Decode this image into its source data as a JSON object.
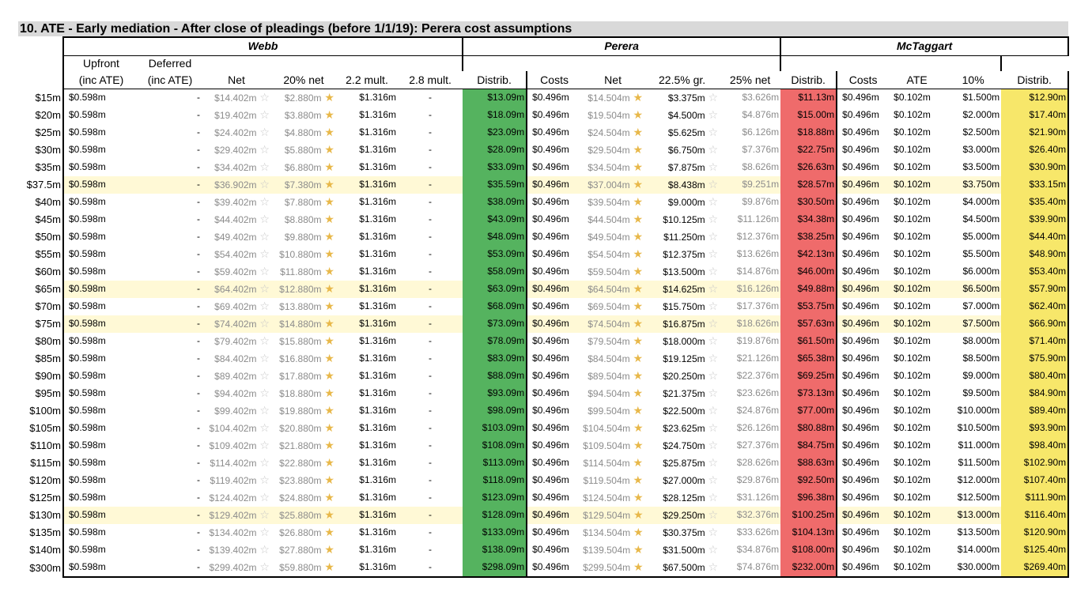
{
  "title": "10.  ATE - Early mediation - After close of pleadings (before 1/1/19): Perera cost assumptions",
  "groups": [
    "Webb",
    "Perera",
    "McTaggart"
  ],
  "header_row1": {
    "upfront": "Upfront",
    "deferred": "Deferred"
  },
  "columns": [
    "(inc ATE)",
    "(inc ATE)",
    "Net",
    "20% net",
    "2.2 mult.",
    "2.8 mult.",
    "Distrib.",
    "Costs",
    "Net",
    "22.5% gr.",
    "25% net",
    "Distrib.",
    "Costs",
    "ATE",
    "10%",
    "Distrib."
  ],
  "colors": {
    "webb_distrib": "#55b35f",
    "perera_distrib": "#ef6b6b",
    "mctaggart_distrib": "#f7e76a",
    "highlight_row": "#fff9d6",
    "title_bar": "#d9d9d9"
  },
  "rows": [
    {
      "label": "$15m",
      "hl": false,
      "c": [
        "$0.598m",
        "-",
        "$14.402m",
        "$2.880m",
        "$1.316m",
        "-",
        "$13.09m",
        "$0.496m",
        "$14.504m",
        "$3.375m",
        "$3.626m",
        "$11.13m",
        "$0.496m",
        "$0.102m",
        "$1.500m",
        "$12.90m"
      ]
    },
    {
      "label": "$20m",
      "hl": false,
      "c": [
        "$0.598m",
        "-",
        "$19.402m",
        "$3.880m",
        "$1.316m",
        "-",
        "$18.09m",
        "$0.496m",
        "$19.504m",
        "$4.500m",
        "$4.876m",
        "$15.00m",
        "$0.496m",
        "$0.102m",
        "$2.000m",
        "$17.40m"
      ]
    },
    {
      "label": "$25m",
      "hl": false,
      "c": [
        "$0.598m",
        "-",
        "$24.402m",
        "$4.880m",
        "$1.316m",
        "-",
        "$23.09m",
        "$0.496m",
        "$24.504m",
        "$5.625m",
        "$6.126m",
        "$18.88m",
        "$0.496m",
        "$0.102m",
        "$2.500m",
        "$21.90m"
      ]
    },
    {
      "label": "$30m",
      "hl": false,
      "c": [
        "$0.598m",
        "-",
        "$29.402m",
        "$5.880m",
        "$1.316m",
        "-",
        "$28.09m",
        "$0.496m",
        "$29.504m",
        "$6.750m",
        "$7.376m",
        "$22.75m",
        "$0.496m",
        "$0.102m",
        "$3.000m",
        "$26.40m"
      ]
    },
    {
      "label": "$35m",
      "hl": false,
      "c": [
        "$0.598m",
        "-",
        "$34.402m",
        "$6.880m",
        "$1.316m",
        "-",
        "$33.09m",
        "$0.496m",
        "$34.504m",
        "$7.875m",
        "$8.626m",
        "$26.63m",
        "$0.496m",
        "$0.102m",
        "$3.500m",
        "$30.90m"
      ]
    },
    {
      "label": "$37.5m",
      "hl": true,
      "c": [
        "$0.598m",
        "-",
        "$36.902m",
        "$7.380m",
        "$1.316m",
        "-",
        "$35.59m",
        "$0.496m",
        "$37.004m",
        "$8.438m",
        "$9.251m",
        "$28.57m",
        "$0.496m",
        "$0.102m",
        "$3.750m",
        "$33.15m"
      ]
    },
    {
      "label": "$40m",
      "hl": false,
      "c": [
        "$0.598m",
        "-",
        "$39.402m",
        "$7.880m",
        "$1.316m",
        "-",
        "$38.09m",
        "$0.496m",
        "$39.504m",
        "$9.000m",
        "$9.876m",
        "$30.50m",
        "$0.496m",
        "$0.102m",
        "$4.000m",
        "$35.40m"
      ]
    },
    {
      "label": "$45m",
      "hl": false,
      "c": [
        "$0.598m",
        "-",
        "$44.402m",
        "$8.880m",
        "$1.316m",
        "-",
        "$43.09m",
        "$0.496m",
        "$44.504m",
        "$10.125m",
        "$11.126m",
        "$34.38m",
        "$0.496m",
        "$0.102m",
        "$4.500m",
        "$39.90m"
      ]
    },
    {
      "label": "$50m",
      "hl": false,
      "c": [
        "$0.598m",
        "-",
        "$49.402m",
        "$9.880m",
        "$1.316m",
        "-",
        "$48.09m",
        "$0.496m",
        "$49.504m",
        "$11.250m",
        "$12.376m",
        "$38.25m",
        "$0.496m",
        "$0.102m",
        "$5.000m",
        "$44.40m"
      ]
    },
    {
      "label": "$55m",
      "hl": false,
      "c": [
        "$0.598m",
        "-",
        "$54.402m",
        "$10.880m",
        "$1.316m",
        "-",
        "$53.09m",
        "$0.496m",
        "$54.504m",
        "$12.375m",
        "$13.626m",
        "$42.13m",
        "$0.496m",
        "$0.102m",
        "$5.500m",
        "$48.90m"
      ]
    },
    {
      "label": "$60m",
      "hl": false,
      "c": [
        "$0.598m",
        "-",
        "$59.402m",
        "$11.880m",
        "$1.316m",
        "-",
        "$58.09m",
        "$0.496m",
        "$59.504m",
        "$13.500m",
        "$14.876m",
        "$46.00m",
        "$0.496m",
        "$0.102m",
        "$6.000m",
        "$53.40m"
      ]
    },
    {
      "label": "$65m",
      "hl": true,
      "c": [
        "$0.598m",
        "-",
        "$64.402m",
        "$12.880m",
        "$1.316m",
        "-",
        "$63.09m",
        "$0.496m",
        "$64.504m",
        "$14.625m",
        "$16.126m",
        "$49.88m",
        "$0.496m",
        "$0.102m",
        "$6.500m",
        "$57.90m"
      ]
    },
    {
      "label": "$70m",
      "hl": false,
      "c": [
        "$0.598m",
        "-",
        "$69.402m",
        "$13.880m",
        "$1.316m",
        "-",
        "$68.09m",
        "$0.496m",
        "$69.504m",
        "$15.750m",
        "$17.376m",
        "$53.75m",
        "$0.496m",
        "$0.102m",
        "$7.000m",
        "$62.40m"
      ]
    },
    {
      "label": "$75m",
      "hl": true,
      "c": [
        "$0.598m",
        "-",
        "$74.402m",
        "$14.880m",
        "$1.316m",
        "-",
        "$73.09m",
        "$0.496m",
        "$74.504m",
        "$16.875m",
        "$18.626m",
        "$57.63m",
        "$0.496m",
        "$0.102m",
        "$7.500m",
        "$66.90m"
      ]
    },
    {
      "label": "$80m",
      "hl": false,
      "c": [
        "$0.598m",
        "-",
        "$79.402m",
        "$15.880m",
        "$1.316m",
        "-",
        "$78.09m",
        "$0.496m",
        "$79.504m",
        "$18.000m",
        "$19.876m",
        "$61.50m",
        "$0.496m",
        "$0.102m",
        "$8.000m",
        "$71.40m"
      ]
    },
    {
      "label": "$85m",
      "hl": false,
      "c": [
        "$0.598m",
        "-",
        "$84.402m",
        "$16.880m",
        "$1.316m",
        "-",
        "$83.09m",
        "$0.496m",
        "$84.504m",
        "$19.125m",
        "$21.126m",
        "$65.38m",
        "$0.496m",
        "$0.102m",
        "$8.500m",
        "$75.90m"
      ]
    },
    {
      "label": "$90m",
      "hl": false,
      "c": [
        "$0.598m",
        "-",
        "$89.402m",
        "$17.880m",
        "$1.316m",
        "-",
        "$88.09m",
        "$0.496m",
        "$89.504m",
        "$20.250m",
        "$22.376m",
        "$69.25m",
        "$0.496m",
        "$0.102m",
        "$9.000m",
        "$80.40m"
      ]
    },
    {
      "label": "$95m",
      "hl": false,
      "c": [
        "$0.598m",
        "-",
        "$94.402m",
        "$18.880m",
        "$1.316m",
        "-",
        "$93.09m",
        "$0.496m",
        "$94.504m",
        "$21.375m",
        "$23.626m",
        "$73.13m",
        "$0.496m",
        "$0.102m",
        "$9.500m",
        "$84.90m"
      ]
    },
    {
      "label": "$100m",
      "hl": false,
      "c": [
        "$0.598m",
        "-",
        "$99.402m",
        "$19.880m",
        "$1.316m",
        "-",
        "$98.09m",
        "$0.496m",
        "$99.504m",
        "$22.500m",
        "$24.876m",
        "$77.00m",
        "$0.496m",
        "$0.102m",
        "$10.000m",
        "$89.40m"
      ]
    },
    {
      "label": "$105m",
      "hl": false,
      "c": [
        "$0.598m",
        "-",
        "$104.402m",
        "$20.880m",
        "$1.316m",
        "-",
        "$103.09m",
        "$0.496m",
        "$104.504m",
        "$23.625m",
        "$26.126m",
        "$80.88m",
        "$0.496m",
        "$0.102m",
        "$10.500m",
        "$93.90m"
      ]
    },
    {
      "label": "$110m",
      "hl": false,
      "c": [
        "$0.598m",
        "-",
        "$109.402m",
        "$21.880m",
        "$1.316m",
        "-",
        "$108.09m",
        "$0.496m",
        "$109.504m",
        "$24.750m",
        "$27.376m",
        "$84.75m",
        "$0.496m",
        "$0.102m",
        "$11.000m",
        "$98.40m"
      ]
    },
    {
      "label": "$115m",
      "hl": false,
      "c": [
        "$0.598m",
        "-",
        "$114.402m",
        "$22.880m",
        "$1.316m",
        "-",
        "$113.09m",
        "$0.496m",
        "$114.504m",
        "$25.875m",
        "$28.626m",
        "$88.63m",
        "$0.496m",
        "$0.102m",
        "$11.500m",
        "$102.90m"
      ]
    },
    {
      "label": "$120m",
      "hl": false,
      "c": [
        "$0.598m",
        "-",
        "$119.402m",
        "$23.880m",
        "$1.316m",
        "-",
        "$118.09m",
        "$0.496m",
        "$119.504m",
        "$27.000m",
        "$29.876m",
        "$92.50m",
        "$0.496m",
        "$0.102m",
        "$12.000m",
        "$107.40m"
      ]
    },
    {
      "label": "$125m",
      "hl": false,
      "c": [
        "$0.598m",
        "-",
        "$124.402m",
        "$24.880m",
        "$1.316m",
        "-",
        "$123.09m",
        "$0.496m",
        "$124.504m",
        "$28.125m",
        "$31.126m",
        "$96.38m",
        "$0.496m",
        "$0.102m",
        "$12.500m",
        "$111.90m"
      ]
    },
    {
      "label": "$130m",
      "hl": true,
      "c": [
        "$0.598m",
        "-",
        "$129.402m",
        "$25.880m",
        "$1.316m",
        "-",
        "$128.09m",
        "$0.496m",
        "$129.504m",
        "$29.250m",
        "$32.376m",
        "$100.25m",
        "$0.496m",
        "$0.102m",
        "$13.000m",
        "$116.40m"
      ]
    },
    {
      "label": "$135m",
      "hl": false,
      "c": [
        "$0.598m",
        "-",
        "$134.402m",
        "$26.880m",
        "$1.316m",
        "-",
        "$133.09m",
        "$0.496m",
        "$134.504m",
        "$30.375m",
        "$33.626m",
        "$104.13m",
        "$0.496m",
        "$0.102m",
        "$13.500m",
        "$120.90m"
      ]
    },
    {
      "label": "$140m",
      "hl": false,
      "c": [
        "$0.598m",
        "-",
        "$139.402m",
        "$27.880m",
        "$1.316m",
        "-",
        "$138.09m",
        "$0.496m",
        "$139.504m",
        "$31.500m",
        "$34.876m",
        "$108.00m",
        "$0.496m",
        "$0.102m",
        "$14.000m",
        "$125.40m"
      ]
    },
    {
      "label": "$300m",
      "hl": false,
      "c": [
        "$0.598m",
        "-",
        "$299.402m",
        "$59.880m",
        "$1.316m",
        "-",
        "$298.09m",
        "$0.496m",
        "$299.504m",
        "$67.500m",
        "$74.876m",
        "$232.00m",
        "$0.496m",
        "$0.102m",
        "$30.000m",
        "$269.40m"
      ]
    }
  ]
}
